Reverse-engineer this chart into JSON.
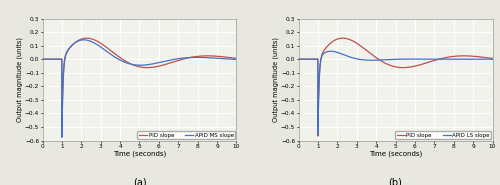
{
  "xlim": [
    0,
    10
  ],
  "ylim": [
    -0.6,
    0.3
  ],
  "yticks": [
    -0.6,
    -0.5,
    -0.4,
    -0.3,
    -0.2,
    -0.1,
    0.0,
    0.1,
    0.2,
    0.3
  ],
  "xticks": [
    0,
    1,
    2,
    3,
    4,
    5,
    6,
    7,
    8,
    9,
    10
  ],
  "xlabel": "Time (seconds)",
  "ylabel": "Output magnitude (units)",
  "title_a": "(a)",
  "title_b": "(b)",
  "legend_a": [
    "PID slope",
    "APID MS slope"
  ],
  "legend_b": [
    "PID slope",
    "APID LS slope"
  ],
  "pid_color": "#c0504d",
  "apid_ms_color": "#4472c4",
  "apid_ls_color": "#4472c4",
  "bg_color": "#f2f2ec",
  "grid_color": "#ffffff",
  "linewidth": 0.9,
  "fig_bg": "#e8e8e0"
}
